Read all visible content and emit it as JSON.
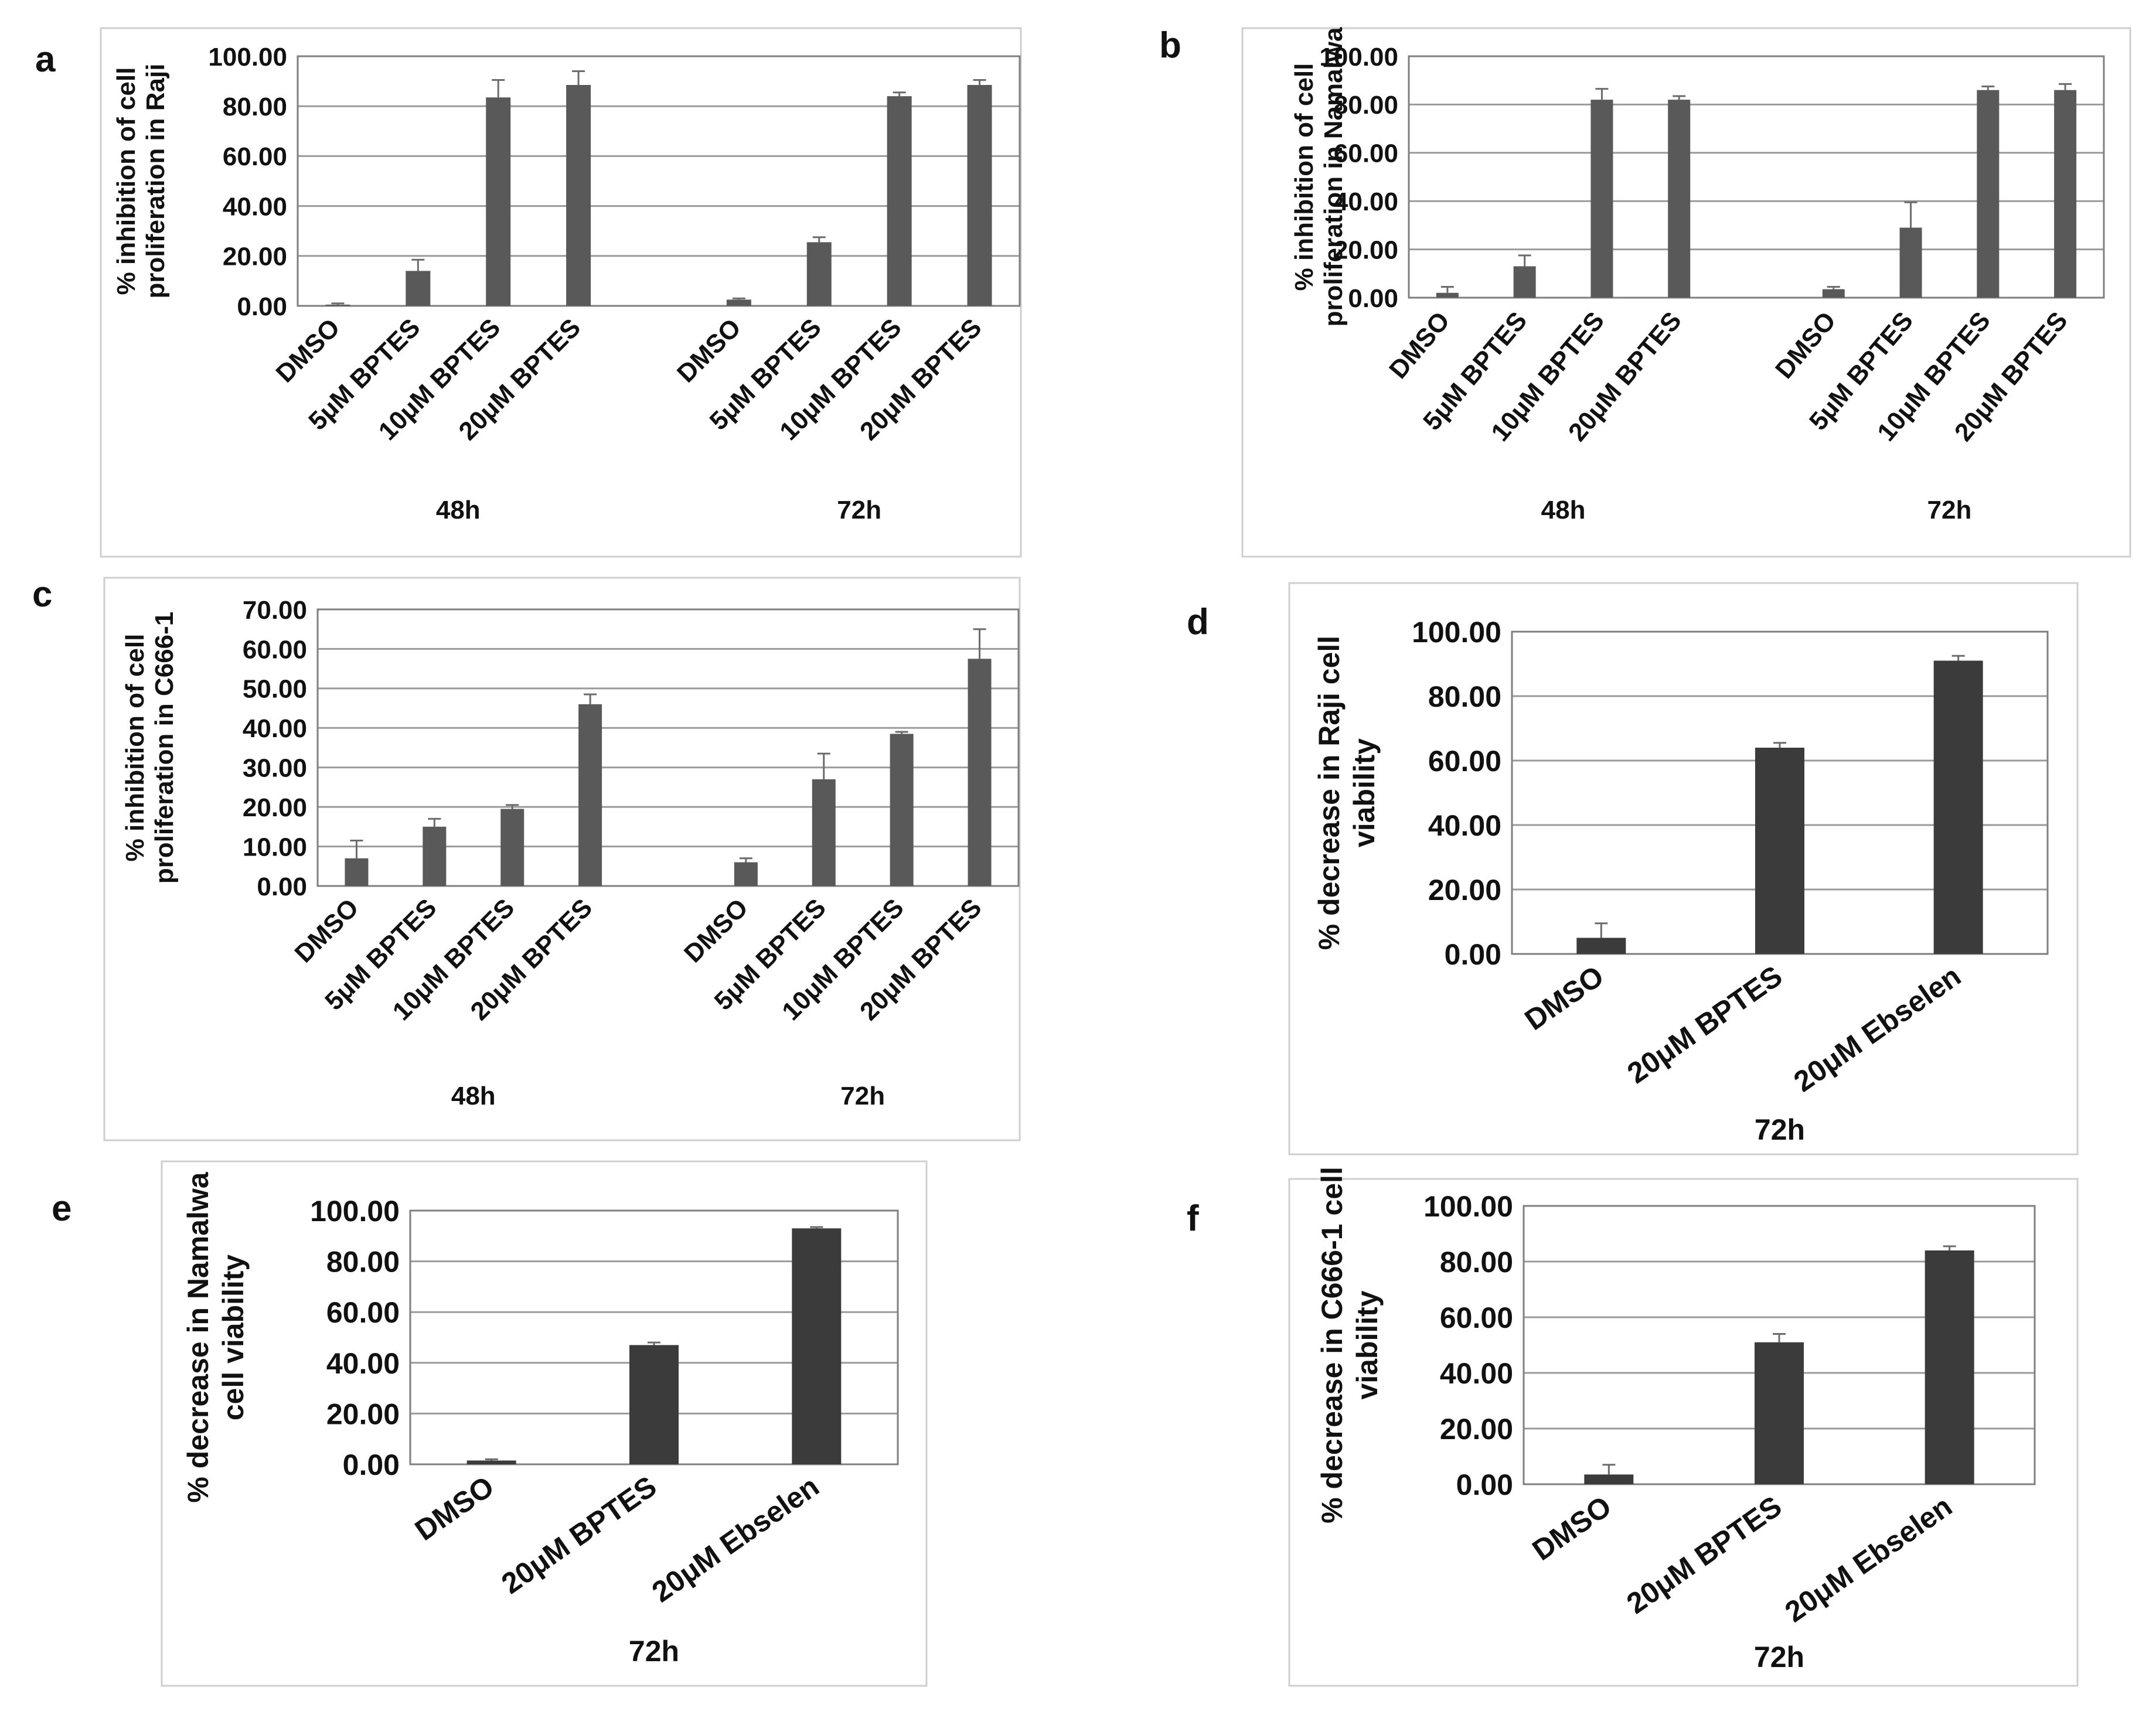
{
  "figure": {
    "background": "#ffffff",
    "bar_color": "#595959",
    "bar_color_dark": "#3b3b3b",
    "grid_color": "#9a9a9a",
    "frame_color": "#cfcfcf"
  },
  "chart_data": [
    {
      "id": "a",
      "panel_label": "a",
      "type": "bar",
      "ylabel_lines": [
        "% inhibition of cell",
        "proliferation in Raji"
      ],
      "yticks": [
        "0.00",
        "20.00",
        "40.00",
        "60.00",
        "80.00",
        "100.00"
      ],
      "ylim": [
        0,
        100
      ],
      "grid": true,
      "groups": [
        {
          "label": "48h",
          "categories": [
            "DMSO",
            "5μM BPTES",
            "10μM BPTES",
            "20μM BPTES"
          ],
          "values": [
            0.5,
            14,
            83.5,
            88.5
          ],
          "errors": [
            0.5,
            4.5,
            7,
            5.5
          ]
        },
        {
          "label": "72h",
          "categories": [
            "DMSO",
            "5μM BPTES",
            "10μM BPTES",
            "20μM BPTES"
          ],
          "values": [
            2.5,
            25.5,
            84,
            88.5
          ],
          "errors": [
            0.5,
            2,
            1.5,
            2
          ]
        }
      ]
    },
    {
      "id": "b",
      "panel_label": "b",
      "type": "bar",
      "ylabel_lines": [
        "% inhibition of cell",
        "proliferation in Namalwa"
      ],
      "yticks": [
        "0.00",
        "20.00",
        "40.00",
        "60.00",
        "80.00",
        "100.00"
      ],
      "ylim": [
        0,
        100
      ],
      "grid": true,
      "groups": [
        {
          "label": "48h",
          "categories": [
            "DMSO",
            "5μM BPTES",
            "10μM BPTES",
            "20μM BPTES"
          ],
          "values": [
            2,
            13,
            82,
            82
          ],
          "errors": [
            2.5,
            4.5,
            4.5,
            1.5
          ]
        },
        {
          "label": "72h",
          "categories": [
            "DMSO",
            "5μM BPTES",
            "10μM BPTES",
            "20μM BPTES"
          ],
          "values": [
            3.5,
            29,
            86,
            86
          ],
          "errors": [
            1,
            10.5,
            1.5,
            2.5
          ]
        }
      ]
    },
    {
      "id": "c",
      "panel_label": "c",
      "type": "bar",
      "ylabel_lines": [
        "% inhibition of cell",
        "proliferation in C666-1"
      ],
      "yticks": [
        "0.00",
        "10.00",
        "20.00",
        "30.00",
        "40.00",
        "50.00",
        "60.00",
        "70.00"
      ],
      "ylim": [
        0,
        70
      ],
      "grid": true,
      "groups": [
        {
          "label": "48h",
          "categories": [
            "DMSO",
            "5μM BPTES",
            "10μM BPTES",
            "20μM BPTES"
          ],
          "values": [
            7,
            15,
            19.5,
            46
          ],
          "errors": [
            4.5,
            2,
            1,
            2.5
          ]
        },
        {
          "label": "72h",
          "categories": [
            "DMSO",
            "5μM BPTES",
            "10μM BPTES",
            "20μM BPTES"
          ],
          "values": [
            6,
            27,
            38.5,
            57.5
          ],
          "errors": [
            1,
            6.5,
            0.5,
            7.5
          ]
        }
      ]
    },
    {
      "id": "d",
      "panel_label": "d",
      "type": "bar",
      "ylabel_lines": [
        "% decrease in Raji cell",
        "viability"
      ],
      "yticks": [
        "0.00",
        "20.00",
        "40.00",
        "60.00",
        "80.00",
        "100.00"
      ],
      "ylim": [
        0,
        100
      ],
      "grid": true,
      "groups": [
        {
          "label": "72h",
          "categories": [
            "DMSO",
            "20μM BPTES",
            "20μM Ebselen"
          ],
          "values": [
            5,
            64,
            91
          ],
          "errors": [
            4.5,
            1.5,
            1.5
          ]
        }
      ]
    },
    {
      "id": "e",
      "panel_label": "e",
      "type": "bar",
      "ylabel_lines": [
        "% decrease in Namalwa",
        "cell viability"
      ],
      "yticks": [
        "0.00",
        "20.00",
        "40.00",
        "60.00",
        "80.00",
        "100.00"
      ],
      "ylim": [
        0,
        100
      ],
      "grid": true,
      "groups": [
        {
          "label": "72h",
          "categories": [
            "DMSO",
            "20μM BPTES",
            "20μM Ebselen"
          ],
          "values": [
            1.5,
            47,
            93
          ],
          "errors": [
            0.5,
            1,
            0.5
          ]
        }
      ]
    },
    {
      "id": "f",
      "panel_label": "f",
      "type": "bar",
      "ylabel_lines": [
        "% decrease in C666-1 cell",
        "viability"
      ],
      "yticks": [
        "0.00",
        "20.00",
        "40.00",
        "60.00",
        "80.00",
        "100.00"
      ],
      "ylim": [
        0,
        100
      ],
      "grid": true,
      "groups": [
        {
          "label": "72h",
          "categories": [
            "DMSO",
            "20μM BPTES",
            "20μM Ebselen"
          ],
          "values": [
            3.5,
            51,
            84
          ],
          "errors": [
            3.5,
            3,
            1.5
          ]
        }
      ]
    }
  ]
}
